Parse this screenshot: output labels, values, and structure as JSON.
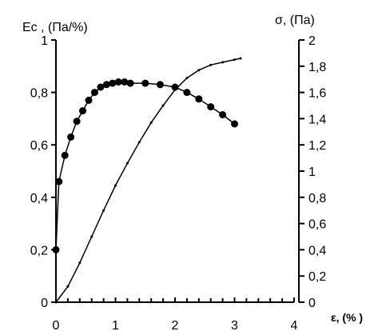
{
  "chart_data": {
    "type": "line",
    "left_axis_title": "Ec , (Па/%)",
    "right_axis_title": "σ, (Па)",
    "x_axis_title": "ε, (% )",
    "xlim": [
      0,
      4
    ],
    "ylim_left": [
      0,
      1
    ],
    "ylim_right": [
      0,
      2
    ],
    "x_ticks": [
      "0",
      "1",
      "2",
      "3",
      "4"
    ],
    "y_left_ticks": [
      "0",
      "0,2",
      "0,4",
      "0,6",
      "0,8",
      "1"
    ],
    "y_right_ticks": [
      "0",
      "0,2",
      "0,4",
      "0,6",
      "0,8",
      "1",
      "1,2",
      "1,4",
      "1,6",
      "1,8",
      "2"
    ],
    "series": [
      {
        "axis": "left",
        "marker": "circle",
        "x": [
          0,
          0.05,
          0.15,
          0.25,
          0.35,
          0.45,
          0.55,
          0.65,
          0.75,
          0.85,
          0.95,
          1.05,
          1.15,
          1.25,
          1.5,
          1.75,
          2.0,
          2.2,
          2.4,
          2.6,
          2.8,
          3.0
        ],
        "y": [
          0.2,
          0.46,
          0.56,
          0.63,
          0.69,
          0.73,
          0.77,
          0.8,
          0.82,
          0.83,
          0.835,
          0.84,
          0.84,
          0.835,
          0.835,
          0.83,
          0.82,
          0.8,
          0.775,
          0.745,
          0.715,
          0.68
        ]
      },
      {
        "axis": "right",
        "marker": "small-dot",
        "x": [
          0,
          0.2,
          0.4,
          0.6,
          0.8,
          1.0,
          1.2,
          1.4,
          1.6,
          1.8,
          2.0,
          2.2,
          2.4,
          2.6,
          2.8,
          3.0,
          3.1
        ],
        "y": [
          0,
          0.12,
          0.3,
          0.5,
          0.7,
          0.89,
          1.06,
          1.22,
          1.37,
          1.5,
          1.62,
          1.71,
          1.77,
          1.81,
          1.83,
          1.85,
          1.86
        ]
      }
    ]
  }
}
